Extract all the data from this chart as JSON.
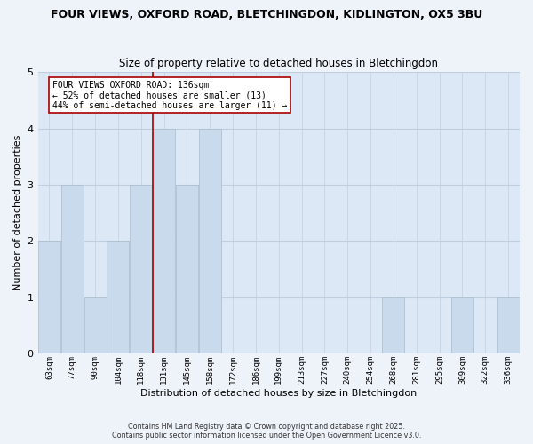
{
  "title": "FOUR VIEWS, OXFORD ROAD, BLETCHINGDON, KIDLINGTON, OX5 3BU",
  "subtitle": "Size of property relative to detached houses in Bletchingdon",
  "xlabel": "Distribution of detached houses by size in Bletchingdon",
  "ylabel": "Number of detached properties",
  "bins": [
    "63sqm",
    "77sqm",
    "90sqm",
    "104sqm",
    "118sqm",
    "131sqm",
    "145sqm",
    "158sqm",
    "172sqm",
    "186sqm",
    "199sqm",
    "213sqm",
    "227sqm",
    "240sqm",
    "254sqm",
    "268sqm",
    "281sqm",
    "295sqm",
    "309sqm",
    "322sqm",
    "336sqm"
  ],
  "counts": [
    2,
    3,
    1,
    2,
    3,
    4,
    3,
    4,
    0,
    0,
    0,
    0,
    0,
    0,
    0,
    1,
    0,
    0,
    1,
    0,
    1
  ],
  "bar_color": "#c8daec",
  "bar_edge_color": "#aabbcc",
  "subject_line_color": "#aa0000",
  "annotation_text": "FOUR VIEWS OXFORD ROAD: 136sqm\n← 52% of detached houses are smaller (13)\n44% of semi-detached houses are larger (11) →",
  "annotation_box_facecolor": "#ffffff",
  "annotation_box_edgecolor": "#aa0000",
  "ylim": [
    0,
    5
  ],
  "yticks": [
    0,
    1,
    2,
    3,
    4,
    5
  ],
  "plot_bg_color": "#dce8f5",
  "fig_bg_color": "#eef3fa",
  "grid_color": "#c0cfe0",
  "footer_line1": "Contains HM Land Registry data © Crown copyright and database right 2025.",
  "footer_line2": "Contains public sector information licensed under the Open Government Licence v3.0."
}
